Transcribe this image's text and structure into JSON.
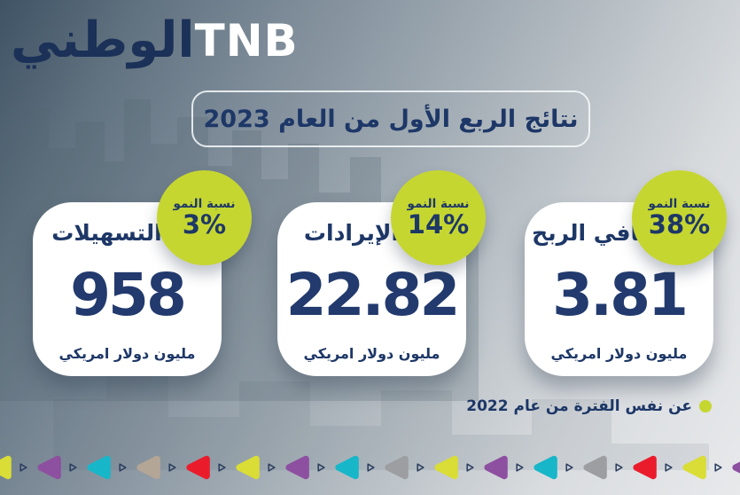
{
  "brand": {
    "arabic": "الوطني",
    "latin": "TNB"
  },
  "title_banner": {
    "text": "نتائج الربع الأول من العام 2023"
  },
  "cards": [
    {
      "title": "التسهيلات",
      "value": "958",
      "unit": "مليون دولار امريكي",
      "growth_label": "نسبة النمو",
      "growth_value": "3%"
    },
    {
      "title": "الإيرادات",
      "value": "22.82",
      "unit": "مليون دولار امريكي",
      "growth_label": "نسبة النمو",
      "growth_value": "14%"
    },
    {
      "title": "صافي الربح",
      "value": "3.81",
      "unit": "مليون دولار امريكي",
      "growth_label": "نسبة النمو",
      "growth_value": "38%"
    }
  ],
  "footnote": {
    "text": "عن نفس الفترة من عام 2022",
    "bullet_color": "#c6d631"
  },
  "colors": {
    "navy": "#1d3767",
    "lime": "#c6d631",
    "card": "#ffffff"
  },
  "footer_strip": {
    "outline_color": "#2b3d5f",
    "triangle_colors": [
      "#d9dd35",
      "#8d4fa0",
      "#18b6c9",
      "#b4a696",
      "#ea1c2c",
      "#d9dd35",
      "#8d4fa0",
      "#18b6c9",
      "#9d9ea1",
      "#d9dd35",
      "#8d4fa0",
      "#18b6c9",
      "#9d9ea1",
      "#ea1c2c",
      "#d9dd35",
      "#8d4fa0"
    ]
  },
  "chart_data": {
    "type": "table",
    "title": "نتائج الربع الأول من العام 2023",
    "categories": [
      "التسهيلات",
      "الإيرادات",
      "صافي الربح"
    ],
    "values": [
      958,
      22.82,
      3.81
    ],
    "unit": "مليون دولار امريكي",
    "growth_label": "نسبة النمو",
    "growth_percent": [
      3,
      14,
      38
    ],
    "comparison_note": "عن نفس الفترة من عام 2022"
  }
}
